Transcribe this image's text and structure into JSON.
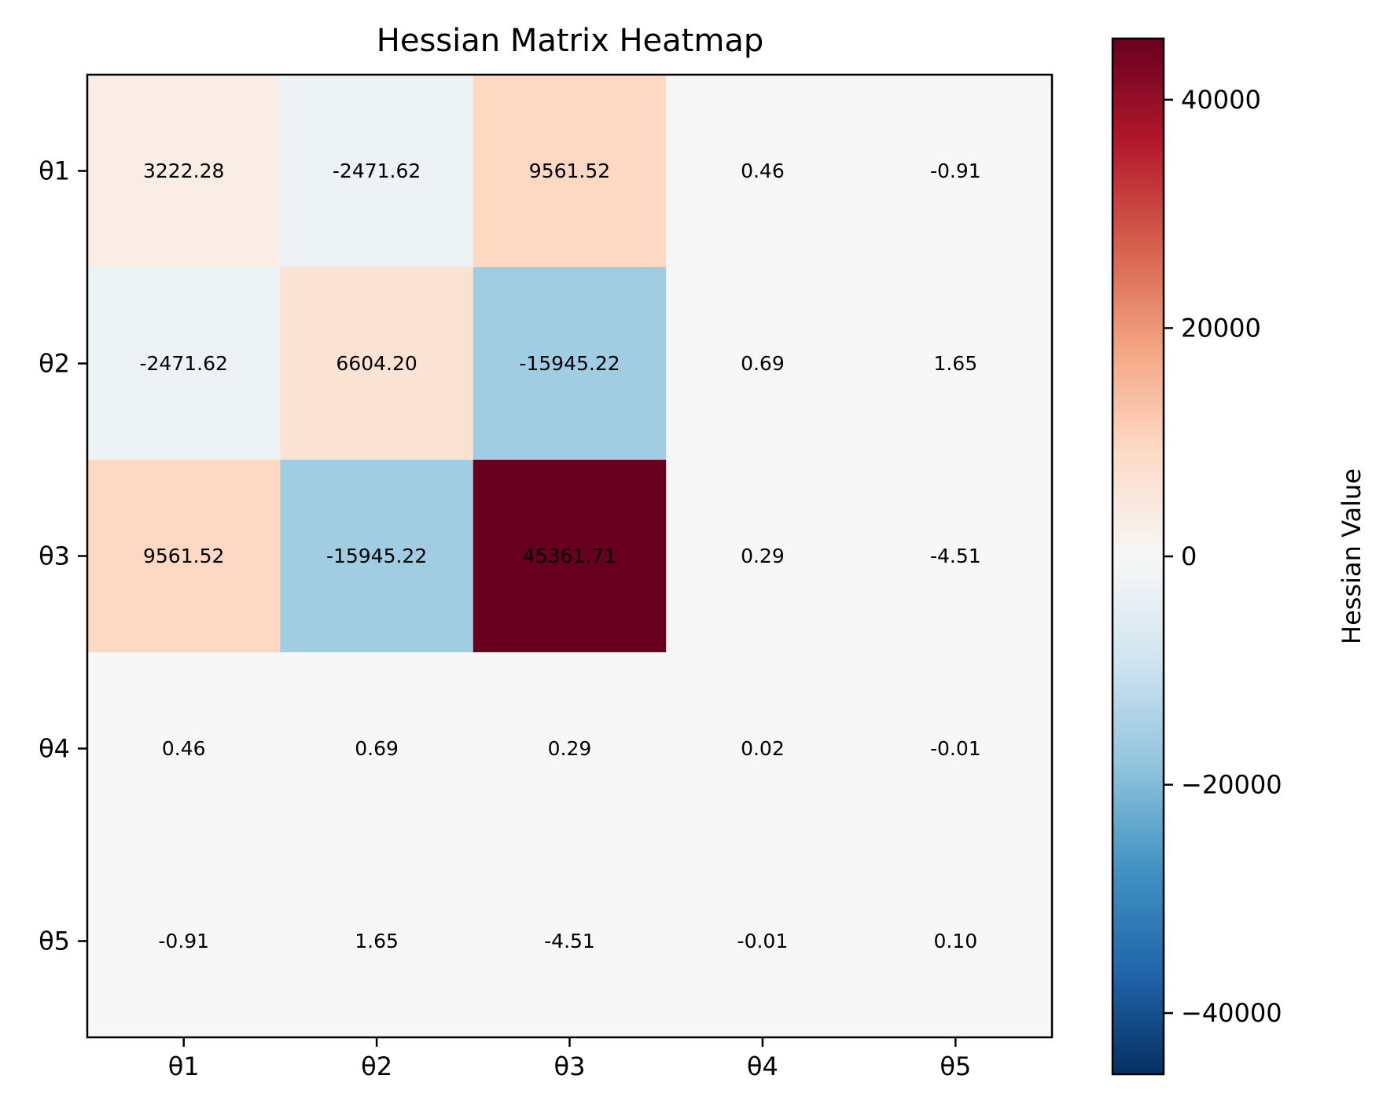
{
  "chart_data": {
    "type": "heatmap",
    "title": "Hessian Matrix Heatmap",
    "x_categories": [
      "θ1",
      "θ2",
      "θ3",
      "θ4",
      "θ5"
    ],
    "y_categories": [
      "θ1",
      "θ2",
      "θ3",
      "θ4",
      "θ5"
    ],
    "values": [
      [
        3222.28,
        -2471.62,
        9561.52,
        0.46,
        -0.91
      ],
      [
        -2471.62,
        6604.2,
        -15945.22,
        0.69,
        1.65
      ],
      [
        9561.52,
        -15945.22,
        45361.71,
        0.29,
        -4.51
      ],
      [
        0.46,
        0.69,
        0.29,
        0.02,
        -0.01
      ],
      [
        -0.91,
        1.65,
        -4.51,
        -0.01,
        0.1
      ]
    ],
    "cell_labels": [
      [
        "3222.28",
        "-2471.62",
        "9561.52",
        "0.46",
        "-0.91"
      ],
      [
        "-2471.62",
        "6604.20",
        "-15945.22",
        "0.69",
        "1.65"
      ],
      [
        "9561.52",
        "-15945.22",
        "45361.71",
        "0.29",
        "-4.51"
      ],
      [
        "0.46",
        "0.69",
        "0.29",
        "0.02",
        "-0.01"
      ],
      [
        "-0.91",
        "1.65",
        "-4.51",
        "-0.01",
        "0.10"
      ]
    ],
    "colormap": "RdBu_r",
    "colorbar": {
      "label": "Hessian Value",
      "range": [
        -45361.71,
        45361.71
      ],
      "ticks": [
        40000,
        20000,
        0,
        -20000,
        -40000
      ],
      "tick_labels": [
        "40000",
        "20000",
        "0",
        "−20000",
        "−40000"
      ]
    },
    "grid": false
  }
}
